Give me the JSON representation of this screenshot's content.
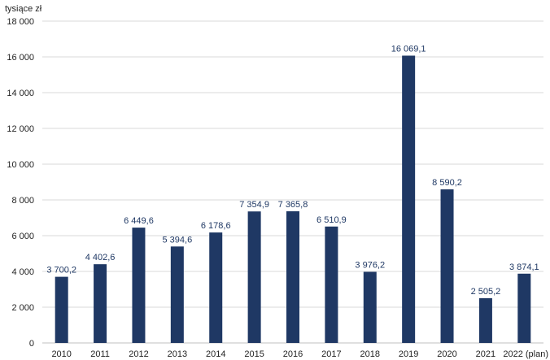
{
  "chart_data": {
    "type": "bar",
    "ylabel": "tysiące zł",
    "xlabel": "",
    "title": "",
    "ylim": [
      0,
      18000
    ],
    "yticks": [
      0,
      2000,
      4000,
      6000,
      8000,
      10000,
      12000,
      14000,
      16000,
      18000
    ],
    "ytick_labels": [
      "0",
      "2 000",
      "4 000",
      "6 000",
      "8 000",
      "10 000",
      "12 000",
      "14 000",
      "16 000",
      "18 000"
    ],
    "categories": [
      "2010",
      "2011",
      "2012",
      "2013",
      "2014",
      "2015",
      "2016",
      "2017",
      "2018",
      "2019",
      "2020",
      "2021",
      "2022 (plan)"
    ],
    "values": [
      3700.2,
      4402.6,
      6449.6,
      5394.6,
      6178.6,
      7354.9,
      7365.8,
      6510.9,
      3976.2,
      16069.1,
      8590.2,
      2505.2,
      3874.1
    ],
    "value_labels": [
      "3 700,2",
      "4 402,6",
      "6 449,6",
      "5 394,6",
      "6 178,6",
      "7 354,9",
      "7 365,8",
      "6 510,9",
      "3 976,2",
      "16 069,1",
      "8 590,2",
      "2 505,2",
      "3 874,1"
    ],
    "grid": true,
    "legend": "none",
    "colors": {
      "bar": "#1f3864",
      "grid": "#d9d9d9",
      "axis": "#bfbfbf",
      "label": "#1f3864",
      "text": "#222222"
    }
  }
}
